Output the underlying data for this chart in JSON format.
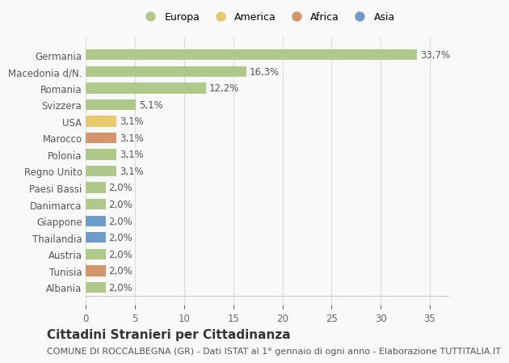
{
  "categories": [
    "Albania",
    "Tunisia",
    "Austria",
    "Thailandia",
    "Giappone",
    "Danimarca",
    "Paesi Bassi",
    "Regno Unito",
    "Polonia",
    "Marocco",
    "USA",
    "Svizzera",
    "Romania",
    "Macedonia d/N.",
    "Germania"
  ],
  "values": [
    2.0,
    2.0,
    2.0,
    2.0,
    2.0,
    2.0,
    2.0,
    3.1,
    3.1,
    3.1,
    3.1,
    5.1,
    12.2,
    16.3,
    33.7
  ],
  "labels": [
    "2,0%",
    "2,0%",
    "2,0%",
    "2,0%",
    "2,0%",
    "2,0%",
    "2,0%",
    "3,1%",
    "3,1%",
    "3,1%",
    "3,1%",
    "5,1%",
    "12,2%",
    "16,3%",
    "33,7%"
  ],
  "colors": [
    "#aec98a",
    "#d4956a",
    "#aec98a",
    "#6e9dc9",
    "#6e9dc9",
    "#aec98a",
    "#aec98a",
    "#aec98a",
    "#aec98a",
    "#d4956a",
    "#e8c86a",
    "#aec98a",
    "#aec98a",
    "#aec98a",
    "#aec98a"
  ],
  "legend": [
    {
      "label": "Europa",
      "color": "#aec98a"
    },
    {
      "label": "America",
      "color": "#e8c86a"
    },
    {
      "label": "Africa",
      "color": "#d4956a"
    },
    {
      "label": "Asia",
      "color": "#6e9dc9"
    }
  ],
  "xlim": [
    0,
    37
  ],
  "xticks": [
    0,
    5,
    10,
    15,
    20,
    25,
    30,
    35
  ],
  "title": "Cittadini Stranieri per Cittadinanza",
  "subtitle": "COMUNE DI ROCCALBEGNA (GR) - Dati ISTAT al 1° gennaio di ogni anno - Elaborazione TUTTITALIA.IT",
  "grid_color": "#dddddd",
  "bg_color": "#f9f9f9",
  "bar_height": 0.65,
  "label_fontsize": 8.5,
  "tick_fontsize": 8.5,
  "title_fontsize": 11,
  "subtitle_fontsize": 8
}
